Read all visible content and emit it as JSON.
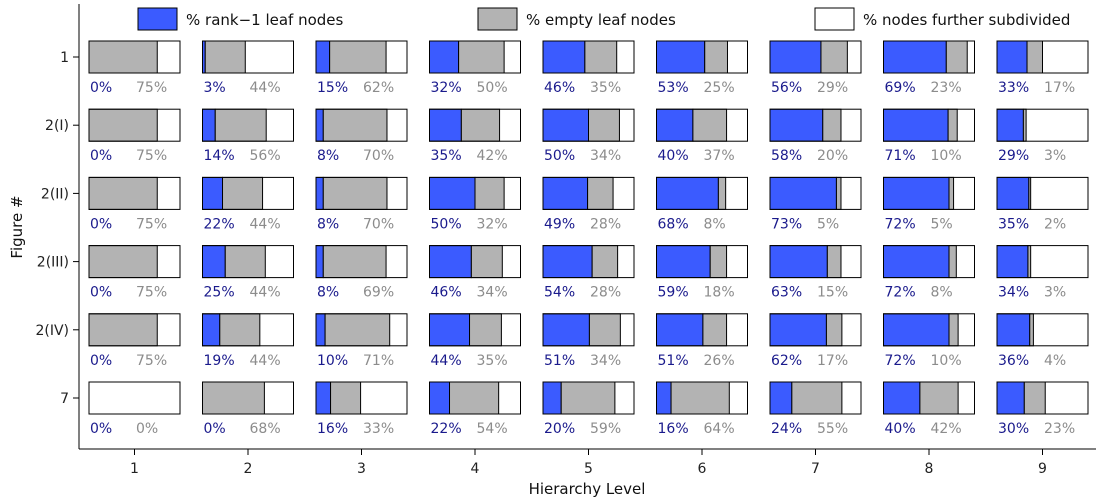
{
  "chart_data": {
    "type": "bar",
    "subtype": "stacked-horizontal-small-multiples",
    "title": "",
    "xlabel": "Hierarchy Level",
    "ylabel": "Figure #",
    "x_categories": [
      "1",
      "2",
      "3",
      "4",
      "5",
      "6",
      "7",
      "8",
      "9"
    ],
    "y_categories": [
      "1",
      "2(I)",
      "2(II)",
      "2(III)",
      "2(IV)",
      "7"
    ],
    "series": [
      {
        "name": "% rank−1 leaf nodes",
        "color": "#3b5bff",
        "label_color": "#1a1a8c",
        "values": [
          [
            0,
            3,
            15,
            32,
            46,
            53,
            56,
            69,
            33
          ],
          [
            0,
            14,
            8,
            35,
            50,
            40,
            58,
            71,
            29
          ],
          [
            0,
            22,
            8,
            50,
            49,
            68,
            73,
            72,
            35
          ],
          [
            0,
            25,
            8,
            46,
            54,
            59,
            63,
            72,
            34
          ],
          [
            0,
            19,
            10,
            44,
            51,
            51,
            62,
            72,
            36
          ],
          [
            0,
            0,
            16,
            22,
            20,
            16,
            24,
            40,
            30
          ]
        ]
      },
      {
        "name": "% empty leaf nodes",
        "color": "#b3b3b3",
        "label_color": "#8c8c8c",
        "values": [
          [
            75,
            44,
            62,
            50,
            35,
            25,
            29,
            23,
            17
          ],
          [
            75,
            56,
            70,
            42,
            34,
            37,
            20,
            10,
            3
          ],
          [
            75,
            44,
            70,
            32,
            28,
            8,
            5,
            5,
            2
          ],
          [
            75,
            44,
            69,
            34,
            28,
            18,
            15,
            8,
            3
          ],
          [
            75,
            44,
            71,
            35,
            34,
            26,
            17,
            10,
            4
          ],
          [
            0,
            68,
            33,
            54,
            59,
            64,
            55,
            42,
            23
          ]
        ]
      },
      {
        "name": "% nodes further subdivided",
        "color": "#ffffff"
      }
    ],
    "legend_position": "top",
    "grid": false
  }
}
